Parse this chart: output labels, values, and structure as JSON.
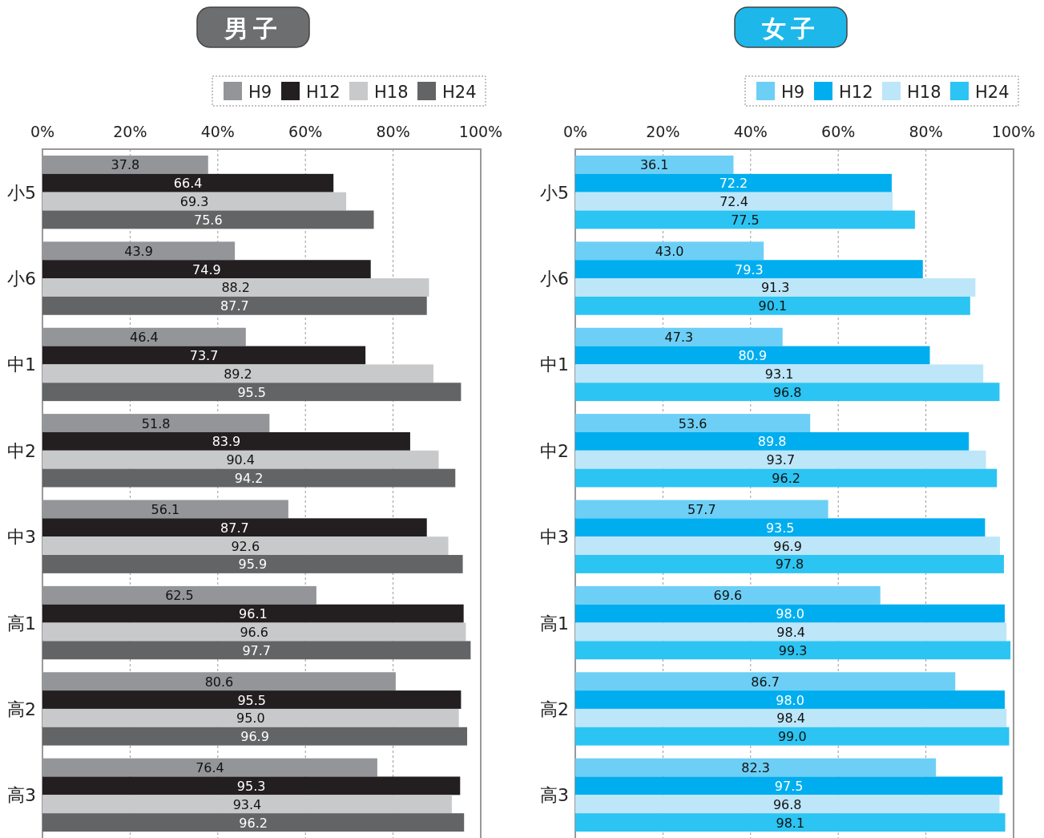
{
  "chart_data": [
    {
      "type": "bar",
      "orientation": "horizontal",
      "title": "男子",
      "categories": [
        "小5",
        "小6",
        "中1",
        "中2",
        "中3",
        "高1",
        "高2",
        "高3"
      ],
      "series": [
        {
          "name": "H9",
          "color": "#939598",
          "values": [
            37.8,
            43.9,
            46.4,
            51.8,
            56.1,
            62.5,
            80.6,
            76.4
          ],
          "value_labels": [
            "37.8",
            "43.9",
            "46.4",
            "51.8",
            "56.1",
            "62.5",
            "80.6",
            "76.4"
          ]
        },
        {
          "name": "H12",
          "color": "#231f20",
          "values": [
            66.4,
            74.9,
            73.7,
            83.9,
            87.7,
            96.1,
            95.5,
            95.3
          ],
          "value_labels": [
            "66.4",
            "74.9",
            "73.7",
            "83.9",
            "87.7",
            "96.1",
            "95.5",
            "95.3"
          ]
        },
        {
          "name": "H18",
          "color": "#c8c9ca",
          "values": [
            69.3,
            88.2,
            89.2,
            90.4,
            92.6,
            96.6,
            95.0,
            93.4
          ],
          "value_labels": [
            "69.3",
            "88.2",
            "89.2",
            "90.4",
            "92.6",
            "96.6",
            "95.0",
            "93.4"
          ]
        },
        {
          "name": "H24",
          "color": "#636466",
          "values": [
            75.6,
            87.7,
            95.5,
            94.2,
            95.9,
            97.7,
            96.9,
            96.2
          ],
          "value_labels": [
            "75.6",
            "87.7",
            "95.5",
            "94.2",
            "95.9",
            "97.7",
            "96.9",
            "96.2"
          ]
        }
      ],
      "xlim": [
        0,
        100
      ],
      "xticks": [
        {
          "value": 0,
          "label": "0%"
        },
        {
          "value": 20,
          "label": "20%"
        },
        {
          "value": 40,
          "label": "40%"
        },
        {
          "value": 60,
          "label": "60%"
        },
        {
          "value": 80,
          "label": "80%"
        },
        {
          "value": 100,
          "label": "100%"
        }
      ],
      "grid": "x",
      "legend": "top right"
    },
    {
      "type": "bar",
      "orientation": "horizontal",
      "title": "女子",
      "categories": [
        "小5",
        "小6",
        "中1",
        "中2",
        "中3",
        "高1",
        "高2",
        "高3"
      ],
      "series": [
        {
          "name": "H9",
          "color": "#6dcff6",
          "values": [
            36.1,
            43.0,
            47.3,
            53.6,
            57.7,
            69.6,
            86.7,
            82.3
          ],
          "value_labels": [
            "36.1",
            "43.0",
            "47.3",
            "53.6",
            "57.7",
            "69.6",
            "86.7",
            "82.3"
          ]
        },
        {
          "name": "H12",
          "color": "#00aeef",
          "values": [
            72.2,
            79.3,
            80.9,
            89.8,
            93.5,
            98.0,
            98.0,
            97.5
          ],
          "value_labels": [
            "72.2",
            "79.3",
            "80.9",
            "89.8",
            "93.5",
            "98.0",
            "98.0",
            "97.5"
          ]
        },
        {
          "name": "H18",
          "color": "#bde6f9",
          "values": [
            72.4,
            91.3,
            93.1,
            93.7,
            96.9,
            98.4,
            98.4,
            96.8
          ],
          "value_labels": [
            "72.4",
            "91.3",
            "93.1",
            "93.7",
            "96.9",
            "98.4",
            "98.4",
            "96.8"
          ]
        },
        {
          "name": "H24",
          "color": "#2cc4f2",
          "values": [
            77.5,
            90.1,
            96.8,
            96.2,
            97.8,
            99.3,
            99.0,
            98.1
          ],
          "value_labels": [
            "77.5",
            "90.1",
            "96.8",
            "96.2",
            "97.8",
            "99.3",
            "99.0",
            "98.1"
          ]
        }
      ],
      "xlim": [
        0,
        100
      ],
      "xticks": [
        {
          "value": 0,
          "label": "0%"
        },
        {
          "value": 20,
          "label": "20%"
        },
        {
          "value": 40,
          "label": "40%"
        },
        {
          "value": 60,
          "label": "60%"
        },
        {
          "value": 80,
          "label": "80%"
        },
        {
          "value": 100,
          "label": "100%"
        }
      ],
      "grid": "x",
      "legend": "top right"
    }
  ]
}
